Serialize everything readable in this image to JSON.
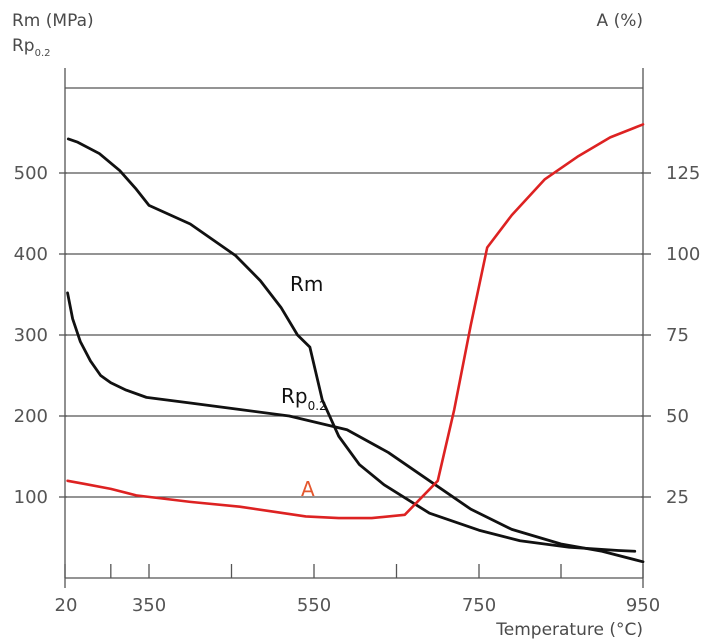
{
  "chart_data": {
    "type": "line",
    "left_axis_title": "Rm (MPa)",
    "left_axis_subtitle_main": "Rp",
    "left_axis_subtitle_sub": "0.2",
    "right_axis_title": "A (%)",
    "xlabel": "Temperature (°C)",
    "x_ticks": [
      20,
      350,
      550,
      750,
      950
    ],
    "left_ticks": [
      100,
      200,
      300,
      400,
      500
    ],
    "right_ticks": [
      25,
      50,
      75,
      100,
      125
    ],
    "grid": "horizontal",
    "colors": {
      "Rm": "#111111",
      "Rp0.2": "#111111",
      "A": "#dd2222",
      "A_label": "#e4572e",
      "grid": "#555555",
      "axis": "#555555"
    },
    "annotations": {
      "Rm": "Rm",
      "Rp_main": "Rp",
      "Rp_sub": "0.2",
      "A": "A"
    },
    "series": [
      {
        "name": "Rm",
        "axis": "left",
        "x": [
          33,
          70,
          155,
          235,
          300,
          350,
          400,
          455,
          485,
          510,
          530,
          545,
          560,
          580,
          605,
          635,
          690,
          750,
          800,
          860,
          920,
          940
        ],
        "y": [
          542,
          538,
          524,
          503,
          480,
          460,
          437,
          398,
          367,
          334,
          300,
          285,
          220,
          175,
          140,
          115,
          80,
          59,
          46,
          38,
          34,
          33
        ]
      },
      {
        "name": "Rp0.2",
        "axis": "left",
        "x": [
          30,
          50,
          80,
          120,
          160,
          200,
          260,
          340,
          400,
          460,
          520,
          590,
          640,
          690,
          740,
          790,
          850,
          900,
          950
        ],
        "y": [
          352,
          320,
          292,
          268,
          250,
          241,
          232,
          223,
          216,
          208,
          200,
          183,
          155,
          120,
          85,
          60,
          42,
          33,
          20
        ]
      },
      {
        "name": "A",
        "axis": "right",
        "x": [
          30,
          100,
          200,
          300,
          400,
          460,
          500,
          540,
          580,
          620,
          660,
          700,
          720,
          740,
          760,
          790,
          830,
          870,
          910,
          950
        ],
        "y": [
          30,
          29,
          27.5,
          25.5,
          23.5,
          22,
          20.5,
          19,
          18.5,
          18.5,
          19.5,
          30,
          52,
          78,
          102,
          112,
          123,
          130,
          136,
          140
        ]
      }
    ]
  }
}
